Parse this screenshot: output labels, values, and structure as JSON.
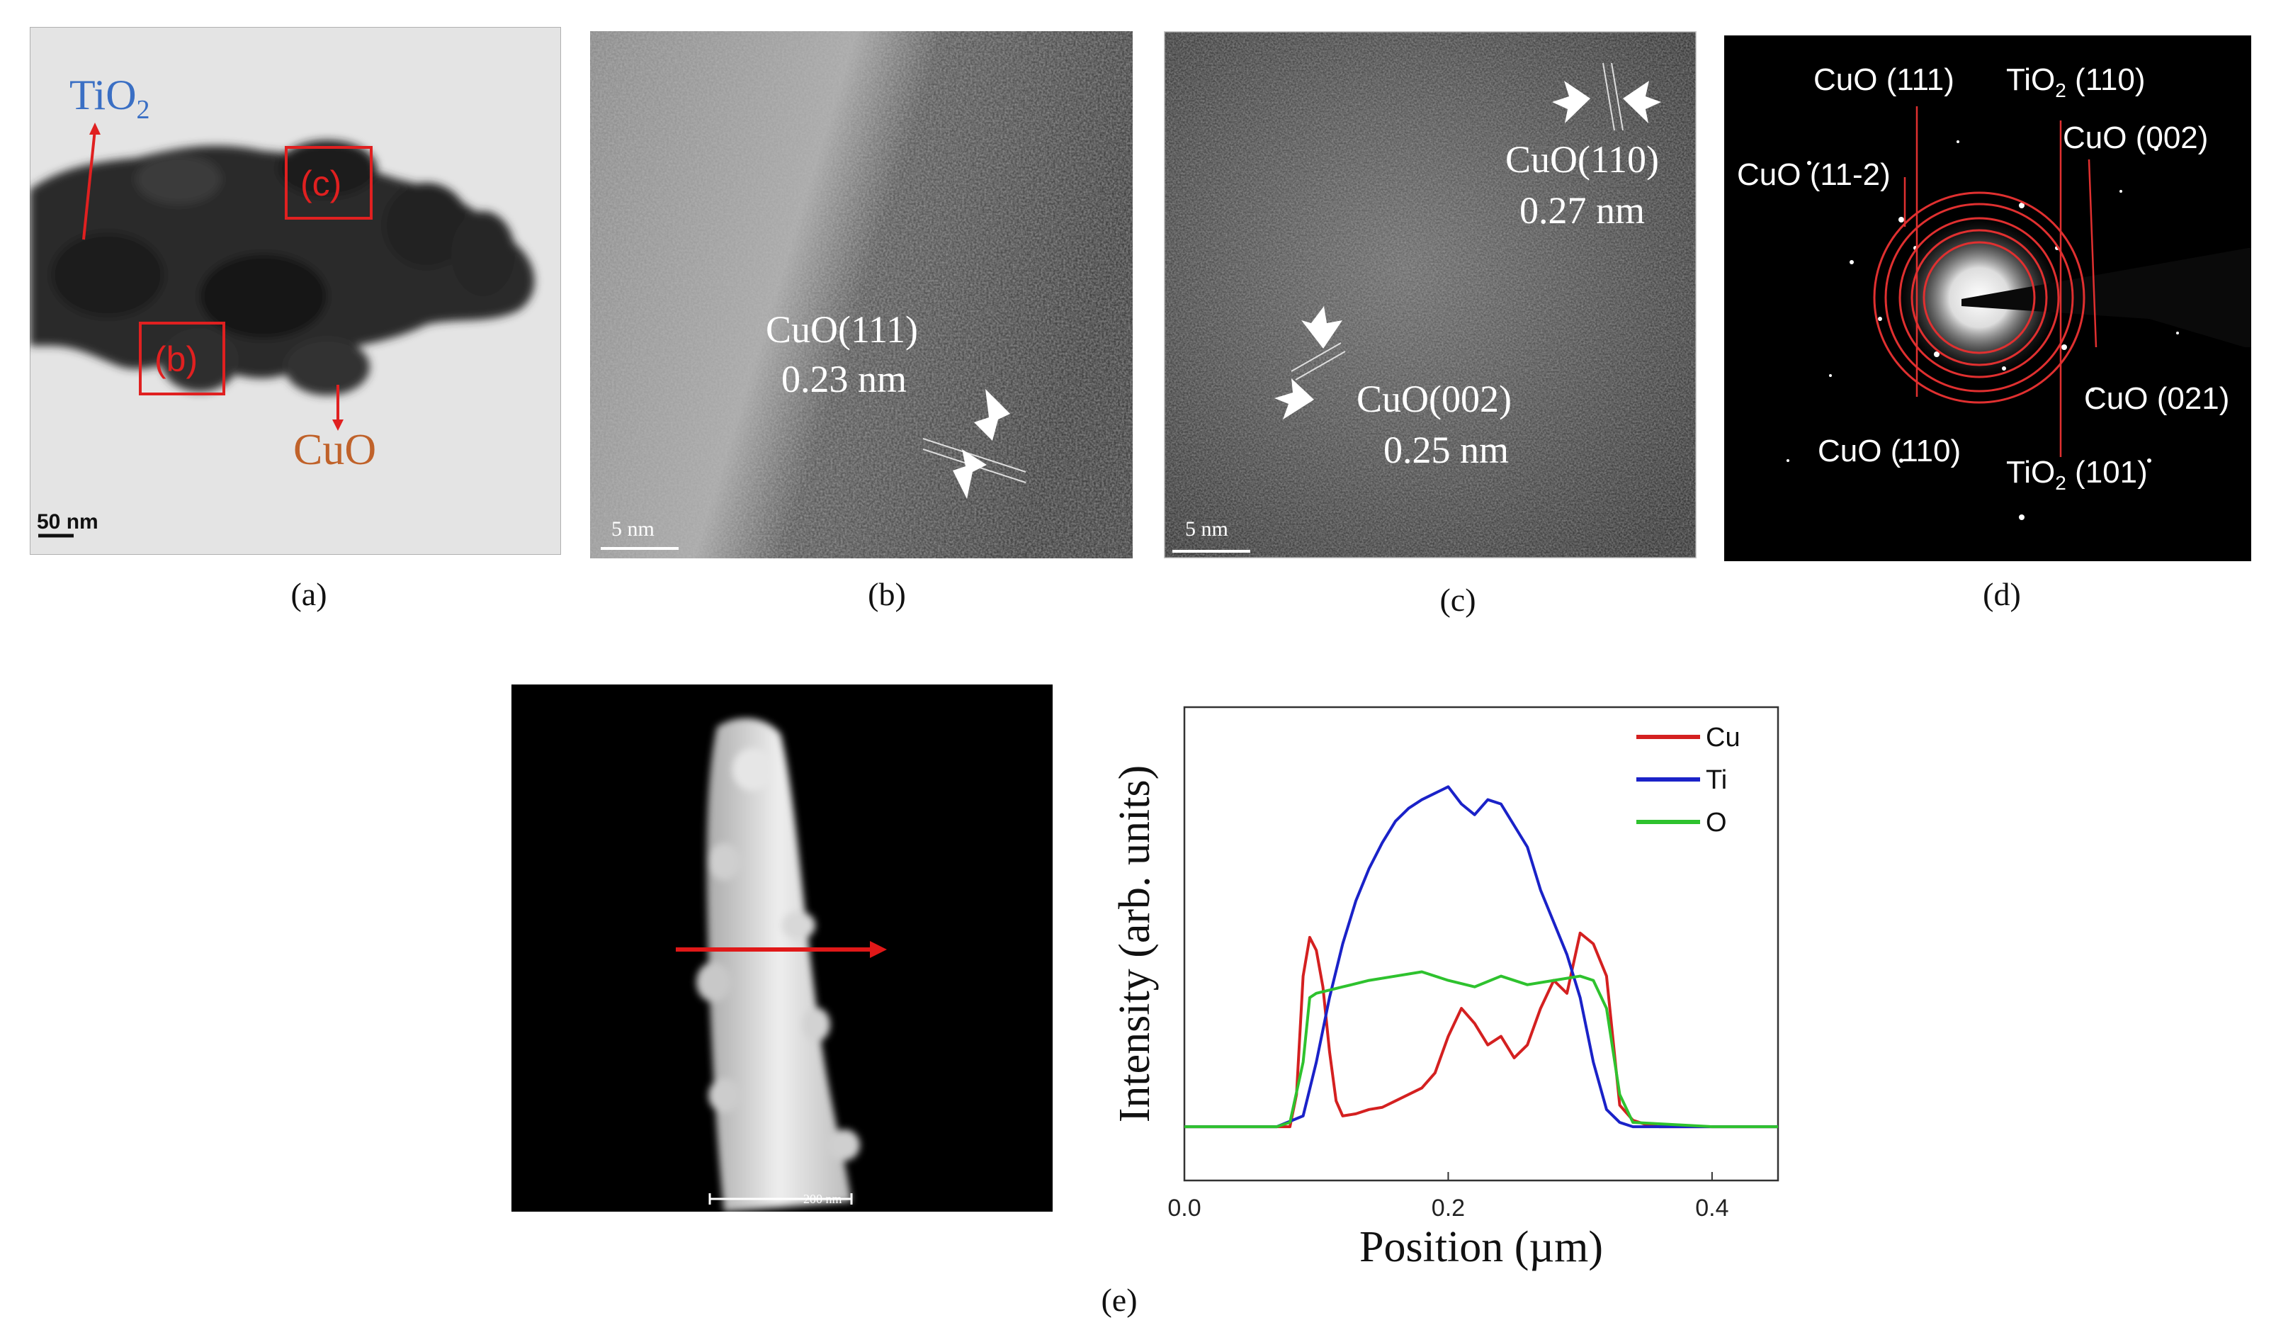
{
  "figure": {
    "captions": {
      "a": "(a)",
      "b": "(b)",
      "c": "(c)",
      "d": "(d)",
      "e": "(e)"
    }
  },
  "panel_a": {
    "label_tio2": "TiO",
    "label_tio2_sub": "2",
    "label_cuo": "CuO",
    "box_c": "(c)",
    "box_b": "(b)",
    "scalebar": "50 nm",
    "colors": {
      "tio2": "#3a6fc4",
      "cuo": "#c0622a",
      "box": "#e02020"
    }
  },
  "panel_b": {
    "plane": "CuO(111)",
    "spacing": "0.23 nm",
    "scalebar": "5 nm"
  },
  "panel_c": {
    "plane_top": "CuO(110)",
    "spacing_top": "0.27 nm",
    "plane_mid": "CuO(002)",
    "spacing_mid": "0.25 nm",
    "scalebar": "5 nm"
  },
  "panel_d": {
    "labels": {
      "cuo_111": "CuO (111)",
      "tio2_110_main": "TiO",
      "tio2_110_sub": "2",
      "tio2_110_idx": " (110)",
      "cuo_11m2": "CuO (11-2)",
      "cuo_002": "CuO (002)",
      "cuo_021": "CuO (021)",
      "cuo_110": "CuO (110)",
      "tio2_101_main": "TiO",
      "tio2_101_sub": "2",
      "tio2_101_idx": " (101)"
    },
    "ring_color": "#e03030"
  },
  "panel_e_image": {
    "scalebar": "200 nm",
    "arrow_color": "#e01818"
  },
  "chart_data": {
    "type": "line",
    "xlabel": "Position (µm)",
    "ylabel": "Intensity (arb. units)",
    "xlim": [
      0.0,
      0.45
    ],
    "xticks": [
      0.0,
      0.2,
      0.4
    ],
    "xtick_labels": [
      "0.0",
      "0.2",
      "0.4"
    ],
    "legend_position": "top-right",
    "series": [
      {
        "name": "Cu",
        "color": "#d42020",
        "x": [
          0.0,
          0.08,
          0.085,
          0.09,
          0.095,
          0.1,
          0.105,
          0.11,
          0.115,
          0.12,
          0.13,
          0.14,
          0.15,
          0.16,
          0.17,
          0.18,
          0.19,
          0.2,
          0.21,
          0.22,
          0.23,
          0.24,
          0.25,
          0.26,
          0.27,
          0.28,
          0.29,
          0.3,
          0.31,
          0.32,
          0.325,
          0.33,
          0.34,
          0.35,
          0.36,
          0.4,
          0.45
        ],
        "y": [
          0.0,
          0.0,
          0.15,
          0.7,
          0.88,
          0.82,
          0.65,
          0.35,
          0.12,
          0.05,
          0.06,
          0.08,
          0.09,
          0.12,
          0.15,
          0.18,
          0.25,
          0.42,
          0.55,
          0.48,
          0.38,
          0.42,
          0.32,
          0.38,
          0.55,
          0.68,
          0.62,
          0.9,
          0.85,
          0.7,
          0.4,
          0.1,
          0.03,
          0.01,
          0.0,
          0.0,
          0.0
        ]
      },
      {
        "name": "Ti",
        "color": "#1a22c8",
        "x": [
          0.0,
          0.07,
          0.09,
          0.1,
          0.11,
          0.12,
          0.13,
          0.14,
          0.15,
          0.16,
          0.17,
          0.18,
          0.19,
          0.2,
          0.21,
          0.22,
          0.23,
          0.24,
          0.25,
          0.26,
          0.27,
          0.28,
          0.29,
          0.3,
          0.31,
          0.32,
          0.33,
          0.34,
          0.4,
          0.45
        ],
        "y": [
          0.0,
          0.0,
          0.05,
          0.3,
          0.6,
          0.85,
          1.05,
          1.2,
          1.32,
          1.42,
          1.48,
          1.52,
          1.55,
          1.58,
          1.5,
          1.45,
          1.52,
          1.5,
          1.4,
          1.3,
          1.1,
          0.95,
          0.8,
          0.6,
          0.3,
          0.08,
          0.02,
          0.0,
          0.0,
          0.0
        ]
      },
      {
        "name": "O",
        "color": "#2ec22e",
        "x": [
          0.0,
          0.07,
          0.08,
          0.09,
          0.095,
          0.1,
          0.12,
          0.14,
          0.16,
          0.18,
          0.2,
          0.22,
          0.24,
          0.26,
          0.28,
          0.3,
          0.31,
          0.32,
          0.33,
          0.34,
          0.4,
          0.45
        ],
        "y": [
          0.0,
          0.0,
          0.02,
          0.3,
          0.6,
          0.62,
          0.65,
          0.68,
          0.7,
          0.72,
          0.68,
          0.65,
          0.7,
          0.66,
          0.68,
          0.7,
          0.68,
          0.55,
          0.15,
          0.02,
          0.0,
          0.0
        ]
      }
    ]
  }
}
